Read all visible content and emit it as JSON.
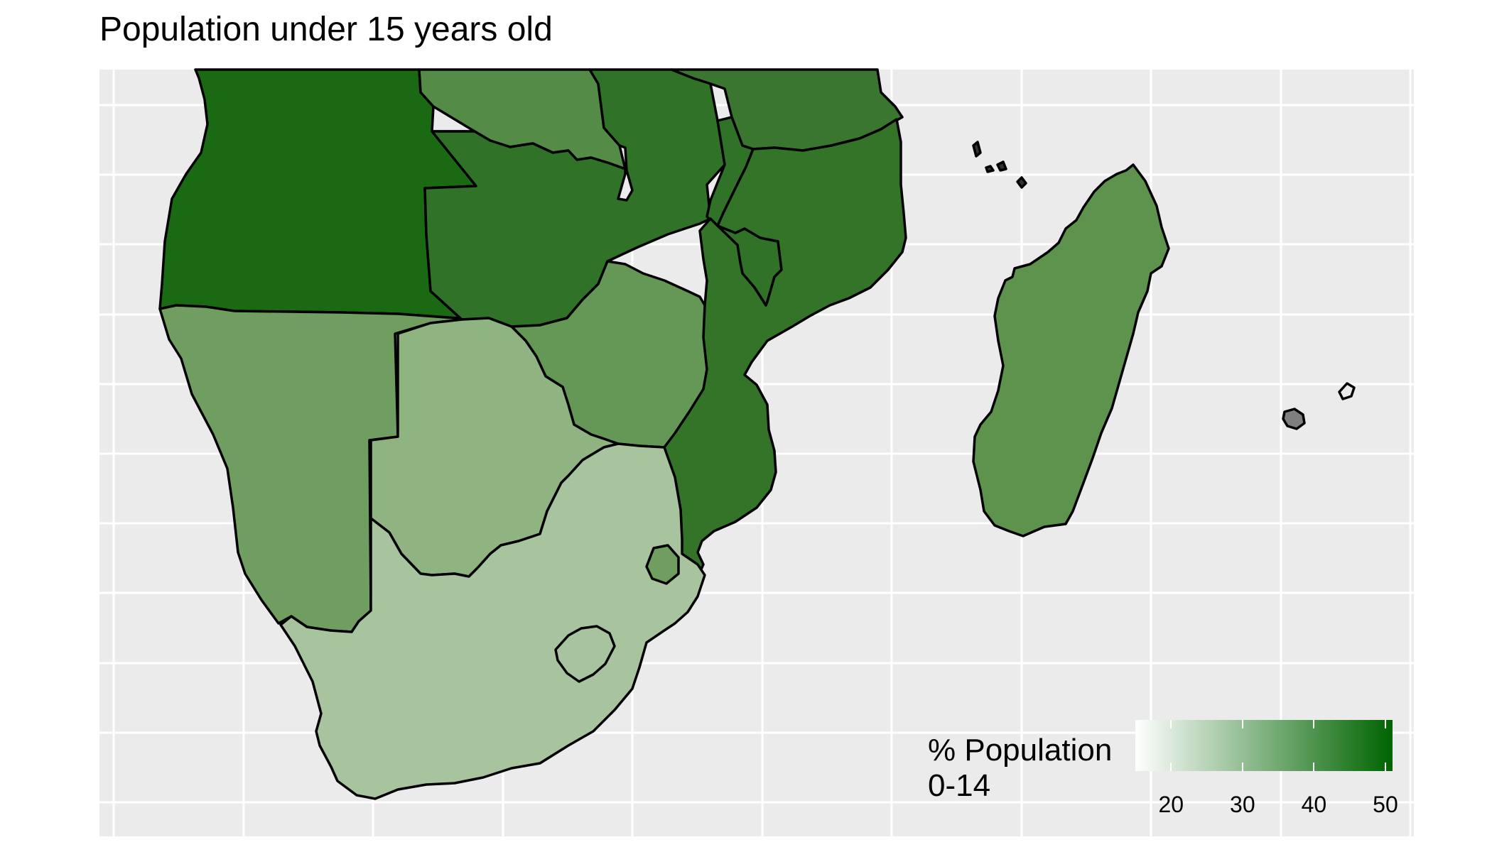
{
  "title": "Population under 15 years old",
  "colors": {
    "panel_background": "#ebebeb",
    "gridline": "#ffffff",
    "border": "#000000",
    "scale_low": "#ffffff",
    "scale_high": "#006400",
    "missing": "#7f7f7f"
  },
  "legend": {
    "title_line1": "% Population",
    "title_line2": "0-14",
    "ticks": [
      "20",
      "30",
      "40",
      "50"
    ],
    "range": [
      15,
      51
    ]
  },
  "regions": [
    {
      "name": "angola-region",
      "fill": "#1a6a14"
    },
    {
      "name": "dr-congo-region",
      "fill": "#538b47"
    },
    {
      "name": "tanzania-region",
      "fill": "#3b7631"
    },
    {
      "name": "zambia-region",
      "fill": "#307328"
    },
    {
      "name": "malawi-region",
      "fill": "#307328"
    },
    {
      "name": "mozambique-region",
      "fill": "#347428"
    },
    {
      "name": "zimbabwe-region",
      "fill": "#659857"
    },
    {
      "name": "namibia-region",
      "fill": "#6f9e60"
    },
    {
      "name": "botswana-region",
      "fill": "#8fb381"
    },
    {
      "name": "south-africa-region",
      "fill": "#a7c49f"
    },
    {
      "name": "lesotho-region",
      "fill": "#a7c49f"
    },
    {
      "name": "eswatini-region",
      "fill": "#6f9e60"
    },
    {
      "name": "madagascar-region",
      "fill": "#5d934d"
    },
    {
      "name": "comoros-region",
      "fill": "#333333"
    },
    {
      "name": "mauritius-region",
      "fill": "#7f7f7f"
    },
    {
      "name": "reunion-region",
      "fill": "#ebebeb"
    }
  ]
}
